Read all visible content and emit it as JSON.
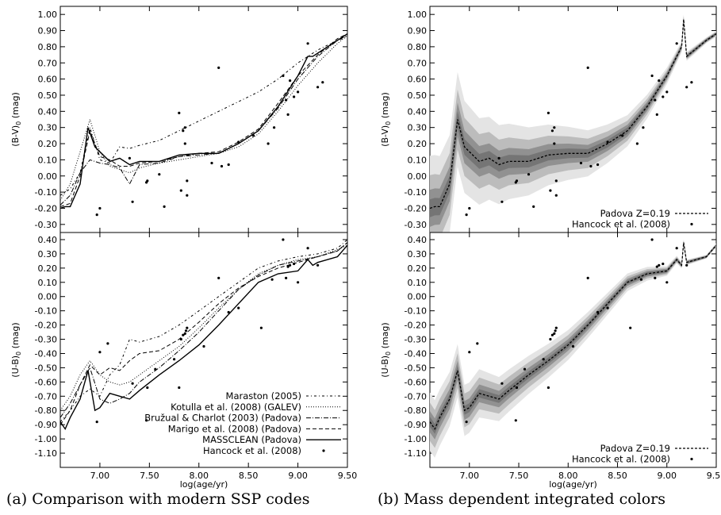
{
  "captions": {
    "a": "(a) Comparison with modern SSP codes",
    "b": "(b) Mass dependent integrated colors"
  },
  "axes": {
    "xlabel": "log(age/yr)",
    "xlim": [
      6.6,
      9.5
    ],
    "xticks": [
      "7.00",
      "7.50",
      "8.00",
      "8.50",
      "9.00",
      "9.50"
    ],
    "bv": {
      "ylabel_main": "(B-V)",
      "ylabel_sub": "0",
      "ylabel_unit": " (mag)",
      "ylim": [
        -0.35,
        1.05
      ],
      "yticks": [
        "1.00",
        "0.90",
        "0.80",
        "0.70",
        "0.60",
        "0.50",
        "0.40",
        "0.30",
        "0.20",
        "0.10",
        "0.00",
        "-0.10",
        "-0.20",
        "-0.30"
      ]
    },
    "ub": {
      "ylabel_main": "(U-B)",
      "ylabel_sub": "0",
      "ylabel_unit": " (mag)",
      "ylim": [
        -1.2,
        0.45
      ],
      "yticks": [
        "0.40",
        "0.30",
        "0.20",
        "0.10",
        "0.00",
        "-0.10",
        "-0.20",
        "-0.30",
        "-0.40",
        "-0.50",
        "-0.60",
        "-0.70",
        "-0.80",
        "-0.90",
        "-1.00",
        "-1.10"
      ]
    }
  },
  "legend_a": [
    "Maraston (2005)",
    "Kotulla et al. (2008) (GALEV)",
    "Bružual & Charlot (2003) (Padova)",
    "Marigo et al. (2008) (Padova)",
    "MASSCLEAN (Padova)",
    "Hancock et al. (2008)"
  ],
  "legend_b": [
    "Padova Z=0.19",
    "Hancock et al. (2008)"
  ],
  "colors": {
    "line": "#000000",
    "band_light": "#e4e4e4",
    "band_mid": "#bcbcbc",
    "band_dark": "#6e6e6e"
  },
  "chart_data": [
    {
      "type": "line",
      "panel": "a-top",
      "xlabel": "log(age/yr)",
      "ylabel": "(B-V)0 (mag)",
      "xlim": [
        6.6,
        9.5
      ],
      "ylim": [
        -0.35,
        1.05
      ],
      "series": [
        {
          "name": "Maraston (2005)",
          "x": [
            6.6,
            6.7,
            6.8,
            6.9,
            7.0,
            7.1,
            7.2,
            7.3,
            7.4,
            7.6,
            7.8,
            8.0,
            8.2,
            8.4,
            8.6,
            8.8,
            9.0,
            9.2,
            9.4,
            9.5
          ],
          "y": [
            -0.12,
            -0.08,
            0.02,
            0.3,
            0.1,
            0.08,
            0.18,
            0.17,
            0.19,
            0.22,
            0.28,
            0.34,
            0.4,
            0.46,
            0.52,
            0.6,
            0.7,
            0.78,
            0.84,
            0.86
          ]
        },
        {
          "name": "Kotulla et al. (2008) (GALEV)",
          "x": [
            6.6,
            6.7,
            6.8,
            6.9,
            7.0,
            7.1,
            7.2,
            7.3,
            7.4,
            7.6,
            7.8,
            8.0,
            8.2,
            8.4,
            8.6,
            8.8,
            9.0,
            9.2,
            9.4,
            9.5
          ],
          "y": [
            -0.15,
            -0.05,
            0.15,
            0.35,
            0.15,
            0.06,
            0.04,
            0.02,
            0.05,
            0.08,
            0.1,
            0.12,
            0.14,
            0.18,
            0.26,
            0.4,
            0.56,
            0.7,
            0.82,
            0.87
          ]
        },
        {
          "name": "Bružual & Charlot (2003) (Padova)",
          "x": [
            6.6,
            6.7,
            6.8,
            6.9,
            7.0,
            7.1,
            7.2,
            7.3,
            7.4,
            7.6,
            7.8,
            8.0,
            8.2,
            8.4,
            8.6,
            8.8,
            9.0,
            9.2,
            9.4,
            9.5
          ],
          "y": [
            -0.18,
            -0.12,
            0.02,
            0.1,
            0.08,
            0.07,
            0.05,
            -0.05,
            0.07,
            0.08,
            0.12,
            0.13,
            0.14,
            0.2,
            0.28,
            0.42,
            0.6,
            0.74,
            0.84,
            0.87
          ]
        },
        {
          "name": "Marigo et al. (2008) (Padova)",
          "x": [
            6.6,
            6.7,
            6.8,
            6.9,
            7.0,
            7.1,
            7.2,
            7.3,
            7.4,
            7.6,
            7.8,
            8.0,
            8.2,
            8.4,
            8.6,
            8.8,
            9.0,
            9.2,
            9.4,
            9.5
          ],
          "y": [
            -0.19,
            -0.17,
            0.0,
            0.28,
            0.12,
            0.1,
            0.06,
            0.06,
            0.08,
            0.09,
            0.12,
            0.14,
            0.15,
            0.21,
            0.29,
            0.45,
            0.62,
            0.75,
            0.85,
            0.88
          ]
        },
        {
          "name": "MASSCLEAN (Padova)",
          "x": [
            6.6,
            6.65,
            6.7,
            6.8,
            6.88,
            6.95,
            7.0,
            7.1,
            7.2,
            7.3,
            7.4,
            7.6,
            7.8,
            8.0,
            8.2,
            8.4,
            8.6,
            8.8,
            9.0,
            9.1,
            9.15,
            9.2,
            9.4,
            9.5
          ],
          "y": [
            -0.2,
            -0.19,
            -0.19,
            -0.05,
            0.3,
            0.18,
            0.15,
            0.09,
            0.11,
            0.07,
            0.09,
            0.09,
            0.13,
            0.14,
            0.14,
            0.2,
            0.28,
            0.43,
            0.62,
            0.74,
            0.74,
            0.76,
            0.84,
            0.88
          ]
        }
      ],
      "points": {
        "name": "Hancock et al. (2008)",
        "x": [
          6.97,
          7.0,
          7.3,
          7.33,
          7.47,
          7.48,
          7.6,
          7.65,
          7.8,
          7.82,
          7.84,
          7.86,
          7.86,
          7.88,
          7.88,
          8.13,
          8.2,
          8.23,
          8.3,
          8.4,
          8.55,
          8.7,
          8.76,
          8.85,
          8.88,
          8.9,
          8.92,
          8.96,
          9.0,
          9.1,
          9.2,
          9.25
        ],
        "y": [
          -0.24,
          -0.2,
          0.11,
          -0.16,
          -0.04,
          -0.03,
          0.01,
          -0.19,
          0.39,
          -0.09,
          0.28,
          0.2,
          0.3,
          -0.03,
          -0.12,
          0.08,
          0.67,
          0.06,
          0.07,
          0.21,
          0.25,
          0.2,
          0.3,
          0.62,
          0.47,
          0.38,
          0.59,
          0.49,
          0.52,
          0.82,
          0.55,
          0.58
        ]
      }
    },
    {
      "type": "line",
      "panel": "a-bottom",
      "xlabel": "log(age/yr)",
      "ylabel": "(U-B)0 (mag)",
      "xlim": [
        6.6,
        9.5
      ],
      "ylim": [
        -1.2,
        0.45
      ],
      "series": [
        {
          "name": "Maraston (2005)",
          "x": [
            6.6,
            6.7,
            6.8,
            6.9,
            7.0,
            7.1,
            7.2,
            7.3,
            7.4,
            7.6,
            7.8,
            8.0,
            8.2,
            8.4,
            8.6,
            8.8,
            9.0,
            9.2,
            9.4,
            9.5
          ],
          "y": [
            -0.88,
            -0.8,
            -0.7,
            -0.65,
            -0.7,
            -0.55,
            -0.48,
            -0.3,
            -0.32,
            -0.28,
            -0.2,
            -0.1,
            0.0,
            0.1,
            0.2,
            0.25,
            0.28,
            0.3,
            0.34,
            0.4
          ]
        },
        {
          "name": "Kotulla et al. (2008) (GALEV)",
          "x": [
            6.6,
            6.7,
            6.8,
            6.9,
            7.0,
            7.1,
            7.2,
            7.3,
            7.4,
            7.6,
            7.8,
            8.0,
            8.2,
            8.4,
            8.6,
            8.8,
            9.0,
            9.2,
            9.4,
            9.5
          ],
          "y": [
            -0.8,
            -0.7,
            -0.55,
            -0.45,
            -0.55,
            -0.6,
            -0.62,
            -0.6,
            -0.55,
            -0.45,
            -0.35,
            -0.22,
            -0.08,
            0.05,
            0.16,
            0.22,
            0.26,
            0.28,
            0.33,
            0.36
          ]
        },
        {
          "name": "Bružual & Charlot (2003) (Padova)",
          "x": [
            6.6,
            6.7,
            6.8,
            6.9,
            7.0,
            7.1,
            7.2,
            7.3,
            7.4,
            7.6,
            7.8,
            8.0,
            8.2,
            8.4,
            8.6,
            8.8,
            9.0,
            9.2,
            9.4,
            9.5
          ],
          "y": [
            -0.85,
            -0.75,
            -0.62,
            -0.5,
            -0.72,
            -0.75,
            -0.72,
            -0.68,
            -0.6,
            -0.5,
            -0.38,
            -0.25,
            -0.1,
            0.05,
            0.15,
            0.22,
            0.25,
            0.28,
            0.32,
            0.38
          ]
        },
        {
          "name": "Marigo et al. (2008) (Padova)",
          "x": [
            6.6,
            6.7,
            6.8,
            6.9,
            7.0,
            7.1,
            7.2,
            7.3,
            7.4,
            7.6,
            7.8,
            8.0,
            8.2,
            8.4,
            8.6,
            8.8,
            9.0,
            9.2,
            9.4,
            9.5
          ],
          "y": [
            -0.9,
            -0.8,
            -0.62,
            -0.48,
            -0.55,
            -0.5,
            -0.52,
            -0.45,
            -0.4,
            -0.38,
            -0.3,
            -0.18,
            -0.05,
            0.06,
            0.14,
            0.2,
            0.24,
            0.28,
            0.32,
            0.38
          ]
        },
        {
          "name": "MASSCLEAN (Padova)",
          "x": [
            6.6,
            6.65,
            6.7,
            6.8,
            6.88,
            6.95,
            7.0,
            7.1,
            7.2,
            7.3,
            7.4,
            7.6,
            7.8,
            8.0,
            8.2,
            8.4,
            8.6,
            8.8,
            9.0,
            9.1,
            9.15,
            9.2,
            9.4,
            9.5
          ],
          "y": [
            -0.88,
            -0.93,
            -0.85,
            -0.72,
            -0.52,
            -0.8,
            -0.78,
            -0.68,
            -0.7,
            -0.72,
            -0.66,
            -0.55,
            -0.45,
            -0.34,
            -0.2,
            -0.05,
            0.1,
            0.16,
            0.18,
            0.26,
            0.22,
            0.24,
            0.28,
            0.36
          ]
        }
      ],
      "points": {
        "name": "Hancock et al. (2008)",
        "x": [
          6.97,
          7.0,
          7.08,
          7.33,
          7.47,
          7.48,
          7.56,
          7.75,
          7.8,
          7.82,
          7.84,
          7.86,
          7.87,
          7.88,
          8.05,
          8.2,
          8.3,
          8.4,
          8.63,
          8.74,
          8.85,
          8.88,
          8.9,
          8.92,
          8.96,
          9.0,
          9.1,
          9.2
        ],
        "y": [
          -0.88,
          -0.39,
          -0.33,
          -0.61,
          -0.87,
          -0.64,
          -0.51,
          -0.44,
          -0.64,
          -0.3,
          -0.27,
          -0.26,
          -0.24,
          -0.22,
          -0.35,
          0.13,
          -0.11,
          -0.08,
          -0.22,
          0.12,
          0.4,
          0.13,
          0.21,
          0.22,
          0.23,
          0.1,
          0.34,
          0.22
        ]
      }
    },
    {
      "type": "area",
      "panel": "b-top",
      "xlabel": "log(age/yr)",
      "ylabel": "(B-V)0 (mag)",
      "xlim": [
        6.6,
        9.5
      ],
      "ylim": [
        -0.35,
        1.05
      ],
      "series": [
        {
          "name": "Padova Z=0.19",
          "x": [
            6.6,
            6.65,
            6.7,
            6.8,
            6.88,
            6.95,
            7.0,
            7.1,
            7.2,
            7.3,
            7.4,
            7.6,
            7.8,
            8.0,
            8.2,
            8.4,
            8.6,
            8.8,
            9.0,
            9.1,
            9.15,
            9.17,
            9.2,
            9.4,
            9.5
          ],
          "y": [
            -0.2,
            -0.19,
            -0.19,
            -0.05,
            0.35,
            0.18,
            0.15,
            0.09,
            0.11,
            0.07,
            0.09,
            0.09,
            0.13,
            0.14,
            0.14,
            0.2,
            0.28,
            0.43,
            0.62,
            0.74,
            0.8,
            0.97,
            0.74,
            0.84,
            0.88
          ]
        }
      ],
      "points": {
        "name": "Hancock et al. (2008)",
        "x": [
          6.97,
          7.0,
          7.3,
          7.33,
          7.47,
          7.48,
          7.6,
          7.65,
          7.8,
          7.82,
          7.84,
          7.86,
          7.86,
          7.88,
          7.88,
          8.13,
          8.2,
          8.23,
          8.3,
          8.4,
          8.55,
          8.7,
          8.76,
          8.85,
          8.88,
          8.9,
          8.92,
          8.96,
          9.0,
          9.1,
          9.2,
          9.25
        ],
        "y": [
          -0.24,
          -0.2,
          0.11,
          -0.16,
          -0.04,
          -0.03,
          0.01,
          -0.19,
          0.39,
          -0.09,
          0.28,
          0.2,
          0.3,
          -0.03,
          -0.12,
          0.08,
          0.67,
          0.06,
          0.07,
          0.21,
          0.25,
          0.2,
          0.3,
          0.62,
          0.47,
          0.38,
          0.59,
          0.49,
          0.52,
          0.82,
          0.55,
          0.58
        ]
      }
    },
    {
      "type": "area",
      "panel": "b-bottom",
      "xlabel": "log(age/yr)",
      "ylabel": "(U-B)0 (mag)",
      "xlim": [
        6.6,
        9.5
      ],
      "ylim": [
        -1.2,
        0.45
      ],
      "series": [
        {
          "name": "Padova Z=0.19",
          "x": [
            6.6,
            6.65,
            6.7,
            6.8,
            6.88,
            6.95,
            7.0,
            7.1,
            7.2,
            7.3,
            7.4,
            7.6,
            7.8,
            8.0,
            8.2,
            8.4,
            8.6,
            8.8,
            9.0,
            9.1,
            9.15,
            9.17,
            9.2,
            9.4,
            9.5
          ],
          "y": [
            -0.88,
            -0.93,
            -0.85,
            -0.72,
            -0.52,
            -0.8,
            -0.78,
            -0.68,
            -0.7,
            -0.72,
            -0.66,
            -0.55,
            -0.45,
            -0.34,
            -0.2,
            -0.05,
            0.1,
            0.16,
            0.18,
            0.26,
            0.22,
            0.38,
            0.24,
            0.28,
            0.36
          ]
        }
      ],
      "points": {
        "name": "Hancock et al. (2008)",
        "x": [
          6.97,
          7.0,
          7.08,
          7.33,
          7.47,
          7.48,
          7.56,
          7.75,
          7.8,
          7.82,
          7.84,
          7.86,
          7.87,
          7.88,
          8.05,
          8.2,
          8.3,
          8.4,
          8.63,
          8.74,
          8.85,
          8.88,
          8.9,
          8.92,
          8.96,
          9.0,
          9.1,
          9.2
        ],
        "y": [
          -0.88,
          -0.39,
          -0.33,
          -0.61,
          -0.87,
          -0.64,
          -0.51,
          -0.44,
          -0.64,
          -0.3,
          -0.27,
          -0.26,
          -0.24,
          -0.22,
          -0.35,
          0.13,
          -0.11,
          -0.08,
          -0.22,
          0.12,
          0.4,
          0.13,
          0.21,
          0.22,
          0.23,
          0.1,
          0.34,
          0.22
        ]
      }
    }
  ]
}
